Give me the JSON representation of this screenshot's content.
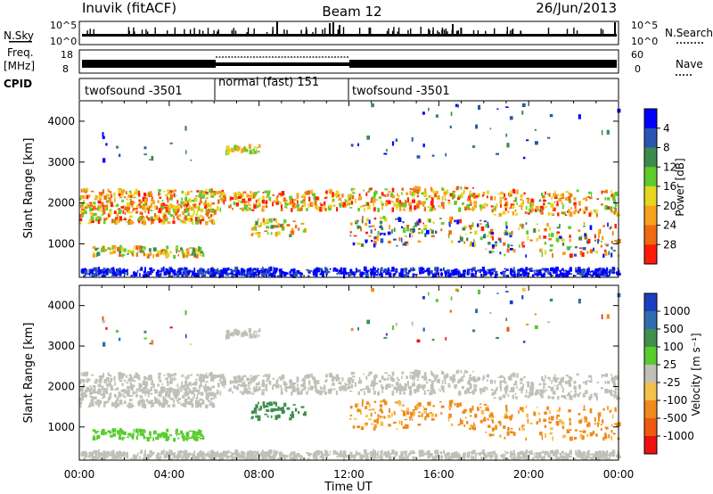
{
  "header": {
    "station": "Inuvik (fitACF)",
    "beam": "Beam 12",
    "date": "26/Jun/2013"
  },
  "labels": {
    "nsky": "N.Sky",
    "freq_line1": "Freq.",
    "freq_line2": "[MHz]",
    "cpid": "CPID",
    "nsearch": "N.Search",
    "nave": "Nave",
    "time_axis": "Time UT",
    "power_cb": "Power [dB]",
    "velocity_cb": "Velocity [m s⁻¹]"
  },
  "chart_data": [
    {
      "type": "line",
      "name": "noise",
      "left_ticks": [
        "10^5",
        "10^0"
      ],
      "right_ticks": [
        "10^5",
        "10^0"
      ],
      "ylim": [
        1,
        100000
      ],
      "yscale": "log"
    },
    {
      "type": "line",
      "name": "frequency / nave",
      "left_ticks": [
        "18",
        "8"
      ],
      "right_ticks": [
        "60",
        "0"
      ],
      "ylim_left": [
        8,
        18
      ],
      "ylim_right": [
        0,
        60
      ]
    },
    {
      "type": "table",
      "name": "cpid",
      "segments": [
        {
          "label": "twofsound -3501",
          "start": "00:00",
          "end": "06:00"
        },
        {
          "label": "normal (fast) 151",
          "start": "06:00",
          "end": "12:00"
        },
        {
          "label": "twofsound -3501",
          "start": "12:00",
          "end": "24:00"
        }
      ]
    },
    {
      "type": "heatmap",
      "name": "power",
      "ylabel": "Slant Range [km]",
      "yticks": [
        1000,
        2000,
        3000,
        4000
      ],
      "ylim": [
        180,
        4500
      ],
      "colorbar_label": "Power [dB]",
      "colorbar_ticks": [
        "4",
        "8",
        "12",
        "16",
        "20",
        "24",
        "28"
      ],
      "colorbar_colors": [
        "#0000ff",
        "#2a55b0",
        "#3d8a4e",
        "#5fcc2e",
        "#e6d61c",
        "#f7a21d",
        "#f06a10",
        "#ff1b0b"
      ]
    },
    {
      "type": "heatmap",
      "name": "velocity",
      "ylabel": "Slant Range [km]",
      "yticks": [
        1000,
        2000,
        3000,
        4000
      ],
      "ylim": [
        180,
        4500
      ],
      "colorbar_label": "Velocity [m s⁻¹]",
      "colorbar_ticks": [
        "1000",
        "500",
        "100",
        "25",
        "-25",
        "-100",
        "-500",
        "-1000"
      ],
      "colorbar_colors": [
        "#1c3fbf",
        "#2f6db0",
        "#3f8f4f",
        "#59cc2e",
        "#c0c0b8",
        "#f5c04a",
        "#f08a1a",
        "#ee5a10",
        "#ee1111"
      ]
    }
  ],
  "x_axis": {
    "ticks": [
      "00:00",
      "04:00",
      "08:00",
      "12:00",
      "16:00",
      "20:00",
      "00:00"
    ],
    "xlim_hours": [
      0,
      24
    ]
  }
}
